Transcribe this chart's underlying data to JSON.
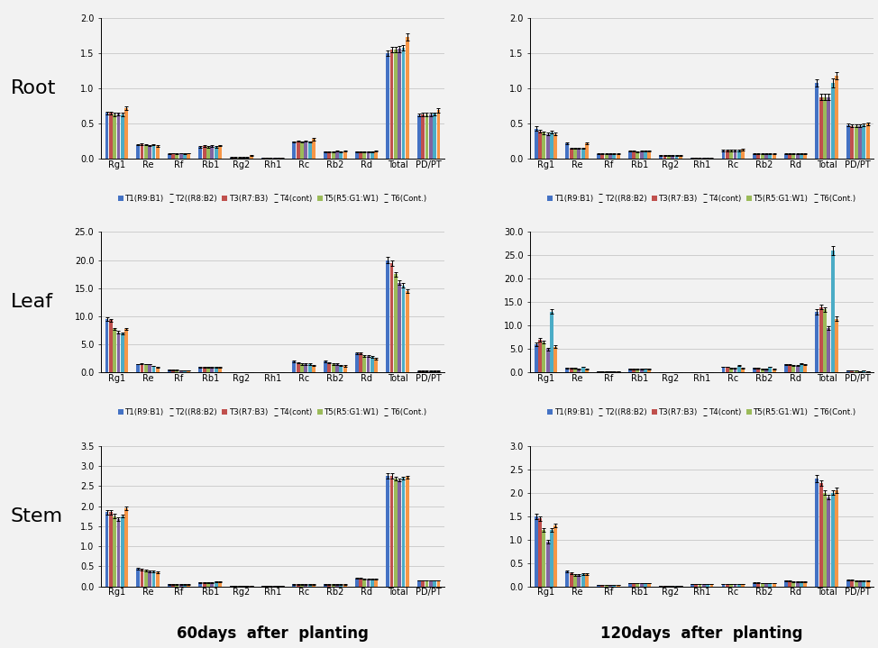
{
  "categories": [
    "Rg1",
    "Re",
    "Rf",
    "Rb1",
    "Rg2",
    "Rh1",
    "Rc",
    "Rb2",
    "Rd",
    "Total",
    "PD/PT"
  ],
  "legend_labels": [
    "T1(R9:B1)",
    "T2((R8:B2)",
    "T3(R7:B3)",
    "T4(cont)",
    "T5(R5:G1:W1)",
    "T6(Cont.)"
  ],
  "bar_colors": [
    "#4472C4",
    "#C0504D",
    "#9BBB59",
    "#8064A2",
    "#4BACC6",
    "#F79646"
  ],
  "row_labels": [
    "Root",
    "Leaf",
    "Stem"
  ],
  "col_labels": [
    "60days  after  planting",
    "120days  after  planting"
  ],
  "background_color": "#f2f2f2",
  "grid_color": "#c8c8c8",
  "axis_font_size": 7,
  "legend_font_size": 6.2,
  "row_label_font_size": 16,
  "col_label_font_size": 12,
  "plots": {
    "root_60": {
      "ylim": [
        0,
        2.0
      ],
      "yticks": [
        0.0,
        0.5,
        1.0,
        1.5,
        2.0
      ],
      "data": [
        [
          0.65,
          0.65,
          0.63,
          0.64,
          0.63,
          0.72
        ],
        [
          0.2,
          0.21,
          0.2,
          0.19,
          0.2,
          0.18
        ],
        [
          0.07,
          0.08,
          0.07,
          0.08,
          0.07,
          0.08
        ],
        [
          0.17,
          0.18,
          0.17,
          0.18,
          0.17,
          0.19
        ],
        [
          0.02,
          0.02,
          0.02,
          0.02,
          0.02,
          0.05
        ],
        [
          0.01,
          0.01,
          0.01,
          0.01,
          0.01,
          0.01
        ],
        [
          0.24,
          0.25,
          0.24,
          0.25,
          0.24,
          0.28
        ],
        [
          0.1,
          0.1,
          0.1,
          0.11,
          0.1,
          0.11
        ],
        [
          0.1,
          0.1,
          0.1,
          0.1,
          0.1,
          0.11
        ],
        [
          1.5,
          1.55,
          1.55,
          1.56,
          1.58,
          1.73
        ],
        [
          0.62,
          0.63,
          0.63,
          0.63,
          0.64,
          0.69
        ]
      ],
      "errors": [
        [
          0.02,
          0.02,
          0.02,
          0.02,
          0.02,
          0.03
        ],
        [
          0.01,
          0.01,
          0.01,
          0.01,
          0.01,
          0.01
        ],
        [
          0.005,
          0.005,
          0.005,
          0.005,
          0.005,
          0.005
        ],
        [
          0.01,
          0.01,
          0.01,
          0.01,
          0.01,
          0.01
        ],
        [
          0.005,
          0.005,
          0.005,
          0.005,
          0.005,
          0.005
        ],
        [
          0.002,
          0.002,
          0.002,
          0.002,
          0.002,
          0.002
        ],
        [
          0.01,
          0.01,
          0.01,
          0.01,
          0.01,
          0.02
        ],
        [
          0.005,
          0.005,
          0.005,
          0.005,
          0.005,
          0.005
        ],
        [
          0.005,
          0.005,
          0.005,
          0.005,
          0.005,
          0.005
        ],
        [
          0.04,
          0.04,
          0.04,
          0.04,
          0.04,
          0.05
        ],
        [
          0.02,
          0.02,
          0.02,
          0.02,
          0.02,
          0.03
        ]
      ]
    },
    "root_120": {
      "ylim": [
        0,
        2.0
      ],
      "yticks": [
        0.0,
        0.5,
        1.0,
        1.5,
        2.0
      ],
      "data": [
        [
          0.43,
          0.39,
          0.37,
          0.35,
          0.38,
          0.35
        ],
        [
          0.22,
          0.15,
          0.15,
          0.15,
          0.15,
          0.22
        ],
        [
          0.07,
          0.07,
          0.07,
          0.07,
          0.07,
          0.07
        ],
        [
          0.11,
          0.11,
          0.1,
          0.11,
          0.11,
          0.11
        ],
        [
          0.05,
          0.05,
          0.05,
          0.05,
          0.05,
          0.05
        ],
        [
          0.01,
          0.01,
          0.01,
          0.01,
          0.01,
          0.01
        ],
        [
          0.12,
          0.12,
          0.12,
          0.12,
          0.12,
          0.13
        ],
        [
          0.07,
          0.07,
          0.07,
          0.07,
          0.07,
          0.07
        ],
        [
          0.07,
          0.07,
          0.07,
          0.07,
          0.07,
          0.07
        ],
        [
          1.08,
          0.88,
          0.88,
          0.88,
          1.08,
          1.18
        ],
        [
          0.48,
          0.47,
          0.47,
          0.47,
          0.48,
          0.5
        ]
      ],
      "errors": [
        [
          0.03,
          0.02,
          0.02,
          0.02,
          0.02,
          0.02
        ],
        [
          0.01,
          0.01,
          0.01,
          0.01,
          0.01,
          0.01
        ],
        [
          0.005,
          0.005,
          0.005,
          0.005,
          0.005,
          0.005
        ],
        [
          0.005,
          0.005,
          0.005,
          0.005,
          0.005,
          0.005
        ],
        [
          0.005,
          0.005,
          0.005,
          0.005,
          0.005,
          0.005
        ],
        [
          0.002,
          0.002,
          0.002,
          0.002,
          0.002,
          0.002
        ],
        [
          0.01,
          0.01,
          0.01,
          0.01,
          0.01,
          0.01
        ],
        [
          0.005,
          0.005,
          0.005,
          0.005,
          0.005,
          0.005
        ],
        [
          0.005,
          0.005,
          0.005,
          0.005,
          0.005,
          0.005
        ],
        [
          0.05,
          0.04,
          0.04,
          0.04,
          0.06,
          0.05
        ],
        [
          0.02,
          0.02,
          0.02,
          0.02,
          0.02,
          0.02
        ]
      ]
    },
    "leaf_60": {
      "ylim": [
        0,
        25.0
      ],
      "yticks": [
        0.0,
        5.0,
        10.0,
        15.0,
        20.0,
        25.0
      ],
      "data": [
        [
          9.5,
          9.3,
          7.8,
          7.2,
          7.0,
          7.8
        ],
        [
          1.5,
          1.6,
          1.5,
          1.5,
          1.2,
          1.0
        ],
        [
          0.5,
          0.5,
          0.5,
          0.4,
          0.4,
          0.4
        ],
        [
          1.0,
          1.0,
          1.0,
          1.0,
          1.0,
          1.0
        ],
        [
          0.1,
          0.1,
          0.1,
          0.1,
          0.1,
          0.1
        ],
        [
          0.1,
          0.1,
          0.1,
          0.1,
          0.1,
          0.1
        ],
        [
          2.0,
          1.7,
          1.5,
          1.5,
          1.5,
          1.3
        ],
        [
          2.0,
          1.7,
          1.5,
          1.5,
          1.3,
          1.2
        ],
        [
          3.5,
          3.5,
          3.0,
          3.0,
          2.8,
          2.5
        ],
        [
          20.0,
          19.5,
          17.5,
          16.0,
          15.5,
          14.5
        ],
        [
          0.3,
          0.3,
          0.3,
          0.3,
          0.3,
          0.3
        ]
      ],
      "errors": [
        [
          0.3,
          0.3,
          0.2,
          0.2,
          0.2,
          0.2
        ],
        [
          0.05,
          0.05,
          0.05,
          0.05,
          0.05,
          0.05
        ],
        [
          0.03,
          0.03,
          0.03,
          0.03,
          0.03,
          0.03
        ],
        [
          0.05,
          0.05,
          0.05,
          0.05,
          0.05,
          0.05
        ],
        [
          0.01,
          0.01,
          0.01,
          0.01,
          0.01,
          0.01
        ],
        [
          0.01,
          0.01,
          0.01,
          0.01,
          0.01,
          0.01
        ],
        [
          0.1,
          0.1,
          0.1,
          0.1,
          0.1,
          0.1
        ],
        [
          0.1,
          0.1,
          0.1,
          0.1,
          0.1,
          0.1
        ],
        [
          0.15,
          0.15,
          0.15,
          0.15,
          0.15,
          0.15
        ],
        [
          0.5,
          0.5,
          0.4,
          0.4,
          0.4,
          0.3
        ],
        [
          0.02,
          0.02,
          0.02,
          0.02,
          0.02,
          0.02
        ]
      ]
    },
    "leaf_120": {
      "ylim": [
        0,
        30.0
      ],
      "yticks": [
        0.0,
        5.0,
        10.0,
        15.0,
        20.0,
        25.0,
        30.0
      ],
      "data": [
        [
          6.0,
          7.0,
          6.5,
          5.0,
          13.0,
          5.5
        ],
        [
          1.0,
          1.0,
          1.0,
          0.8,
          1.2,
          0.8
        ],
        [
          0.3,
          0.3,
          0.3,
          0.3,
          0.3,
          0.3
        ],
        [
          0.8,
          0.8,
          0.8,
          0.8,
          0.9,
          0.8
        ],
        [
          0.1,
          0.1,
          0.1,
          0.1,
          0.1,
          0.1
        ],
        [
          0.05,
          0.05,
          0.05,
          0.05,
          0.05,
          0.05
        ],
        [
          1.2,
          1.2,
          1.0,
          1.0,
          1.5,
          1.0
        ],
        [
          1.0,
          1.0,
          0.8,
          0.8,
          1.2,
          0.8
        ],
        [
          1.8,
          1.8,
          1.6,
          1.5,
          2.0,
          1.8
        ],
        [
          13.0,
          14.0,
          13.5,
          9.5,
          26.0,
          11.5
        ],
        [
          0.4,
          0.4,
          0.4,
          0.3,
          0.5,
          0.3
        ]
      ],
      "errors": [
        [
          0.4,
          0.3,
          0.3,
          0.3,
          0.5,
          0.3
        ],
        [
          0.05,
          0.05,
          0.05,
          0.05,
          0.05,
          0.05
        ],
        [
          0.02,
          0.02,
          0.02,
          0.02,
          0.02,
          0.02
        ],
        [
          0.05,
          0.05,
          0.05,
          0.05,
          0.05,
          0.05
        ],
        [
          0.01,
          0.01,
          0.01,
          0.01,
          0.01,
          0.01
        ],
        [
          0.005,
          0.005,
          0.005,
          0.005,
          0.005,
          0.005
        ],
        [
          0.05,
          0.05,
          0.05,
          0.05,
          0.05,
          0.05
        ],
        [
          0.05,
          0.05,
          0.05,
          0.05,
          0.05,
          0.05
        ],
        [
          0.1,
          0.1,
          0.1,
          0.1,
          0.1,
          0.1
        ],
        [
          0.6,
          0.5,
          0.5,
          0.4,
          1.0,
          0.5
        ],
        [
          0.02,
          0.02,
          0.02,
          0.02,
          0.02,
          0.02
        ]
      ]
    },
    "stem_60": {
      "ylim": [
        0,
        3.5
      ],
      "yticks": [
        0.0,
        0.5,
        1.0,
        1.5,
        2.0,
        2.5,
        3.0,
        3.5
      ],
      "data": [
        [
          1.85,
          1.85,
          1.75,
          1.68,
          1.75,
          1.95
        ],
        [
          0.45,
          0.42,
          0.4,
          0.38,
          0.38,
          0.35
        ],
        [
          0.05,
          0.05,
          0.05,
          0.05,
          0.05,
          0.05
        ],
        [
          0.1,
          0.1,
          0.1,
          0.1,
          0.12,
          0.12
        ],
        [
          0.02,
          0.02,
          0.02,
          0.02,
          0.02,
          0.02
        ],
        [
          0.01,
          0.01,
          0.01,
          0.01,
          0.01,
          0.01
        ],
        [
          0.05,
          0.05,
          0.05,
          0.05,
          0.05,
          0.05
        ],
        [
          0.05,
          0.05,
          0.05,
          0.05,
          0.05,
          0.05
        ],
        [
          0.2,
          0.2,
          0.18,
          0.18,
          0.18,
          0.18
        ],
        [
          2.75,
          2.75,
          2.68,
          2.65,
          2.7,
          2.72
        ],
        [
          0.15,
          0.15,
          0.15,
          0.15,
          0.15,
          0.15
        ]
      ],
      "errors": [
        [
          0.06,
          0.06,
          0.05,
          0.04,
          0.04,
          0.05
        ],
        [
          0.02,
          0.02,
          0.02,
          0.02,
          0.02,
          0.02
        ],
        [
          0.005,
          0.005,
          0.005,
          0.005,
          0.005,
          0.005
        ],
        [
          0.01,
          0.01,
          0.01,
          0.01,
          0.01,
          0.01
        ],
        [
          0.002,
          0.002,
          0.002,
          0.002,
          0.002,
          0.002
        ],
        [
          0.001,
          0.001,
          0.001,
          0.001,
          0.001,
          0.001
        ],
        [
          0.005,
          0.005,
          0.005,
          0.005,
          0.005,
          0.005
        ],
        [
          0.005,
          0.005,
          0.005,
          0.005,
          0.005,
          0.005
        ],
        [
          0.01,
          0.01,
          0.01,
          0.01,
          0.01,
          0.01
        ],
        [
          0.06,
          0.06,
          0.05,
          0.04,
          0.04,
          0.04
        ],
        [
          0.01,
          0.01,
          0.01,
          0.01,
          0.01,
          0.01
        ]
      ]
    },
    "stem_120": {
      "ylim": [
        0,
        3.0
      ],
      "yticks": [
        0.0,
        0.5,
        1.0,
        1.5,
        2.0,
        2.5,
        3.0
      ],
      "data": [
        [
          1.5,
          1.45,
          1.2,
          0.95,
          1.2,
          1.3
        ],
        [
          0.32,
          0.28,
          0.25,
          0.25,
          0.27,
          0.27
        ],
        [
          0.03,
          0.03,
          0.03,
          0.03,
          0.03,
          0.03
        ],
        [
          0.07,
          0.07,
          0.07,
          0.07,
          0.07,
          0.07
        ],
        [
          0.02,
          0.02,
          0.02,
          0.02,
          0.02,
          0.02
        ],
        [
          0.05,
          0.05,
          0.05,
          0.05,
          0.05,
          0.05
        ],
        [
          0.05,
          0.05,
          0.05,
          0.05,
          0.05,
          0.05
        ],
        [
          0.08,
          0.08,
          0.07,
          0.07,
          0.07,
          0.07
        ],
        [
          0.12,
          0.12,
          0.1,
          0.1,
          0.1,
          0.1
        ],
        [
          2.3,
          2.2,
          2.0,
          1.9,
          2.0,
          2.05
        ],
        [
          0.13,
          0.13,
          0.12,
          0.12,
          0.12,
          0.12
        ]
      ],
      "errors": [
        [
          0.06,
          0.05,
          0.04,
          0.04,
          0.04,
          0.04
        ],
        [
          0.02,
          0.02,
          0.02,
          0.02,
          0.02,
          0.02
        ],
        [
          0.003,
          0.003,
          0.003,
          0.003,
          0.003,
          0.003
        ],
        [
          0.005,
          0.005,
          0.005,
          0.005,
          0.005,
          0.005
        ],
        [
          0.002,
          0.002,
          0.002,
          0.002,
          0.002,
          0.002
        ],
        [
          0.005,
          0.005,
          0.005,
          0.005,
          0.005,
          0.005
        ],
        [
          0.005,
          0.005,
          0.005,
          0.005,
          0.005,
          0.005
        ],
        [
          0.005,
          0.005,
          0.005,
          0.005,
          0.005,
          0.005
        ],
        [
          0.01,
          0.01,
          0.01,
          0.01,
          0.01,
          0.01
        ],
        [
          0.07,
          0.06,
          0.05,
          0.05,
          0.05,
          0.05
        ],
        [
          0.01,
          0.01,
          0.01,
          0.01,
          0.01,
          0.01
        ]
      ]
    }
  }
}
